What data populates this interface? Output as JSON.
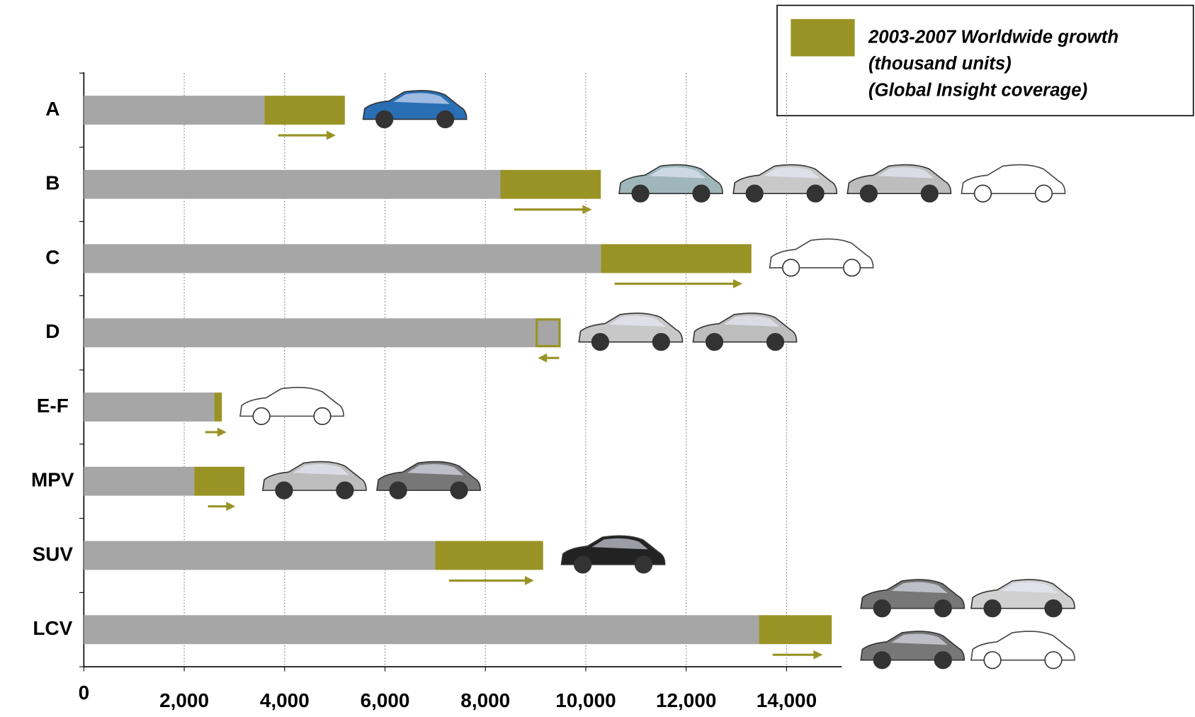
{
  "chart_data": {
    "type": "bar",
    "orientation": "horizontal",
    "stacked": true,
    "categories": [
      "A",
      "B",
      "C",
      "D",
      "E-F",
      "MPV",
      "SUV",
      "LCV"
    ],
    "series": [
      {
        "color": "#a6a6a6",
        "values": [
          3600,
          8300,
          10300,
          9500,
          2600,
          2200,
          7000,
          13450
        ]
      },
      {
        "name": [
          "2003-2007 Worldwide growth",
          "(thousand units)",
          "(Global Insight coverage)"
        ],
        "color": "#999326",
        "values": [
          1600,
          2000,
          3000,
          -500,
          150,
          1000,
          2150,
          1450
        ]
      }
    ],
    "xlim": [
      0,
      15100
    ],
    "xticks": [
      0,
      {
        "value": 2000,
        "label": "2,000"
      },
      {
        "value": 4000,
        "label": "4,000"
      },
      {
        "value": 6000,
        "label": "6,000"
      },
      {
        "value": 8000,
        "label": "8,000"
      },
      {
        "value": 10000,
        "label": "10,000"
      },
      {
        "value": 12000,
        "label": "12,000"
      },
      {
        "value": 14000,
        "label": "14,000"
      }
    ],
    "grid": true,
    "legend": "top-right"
  }
}
